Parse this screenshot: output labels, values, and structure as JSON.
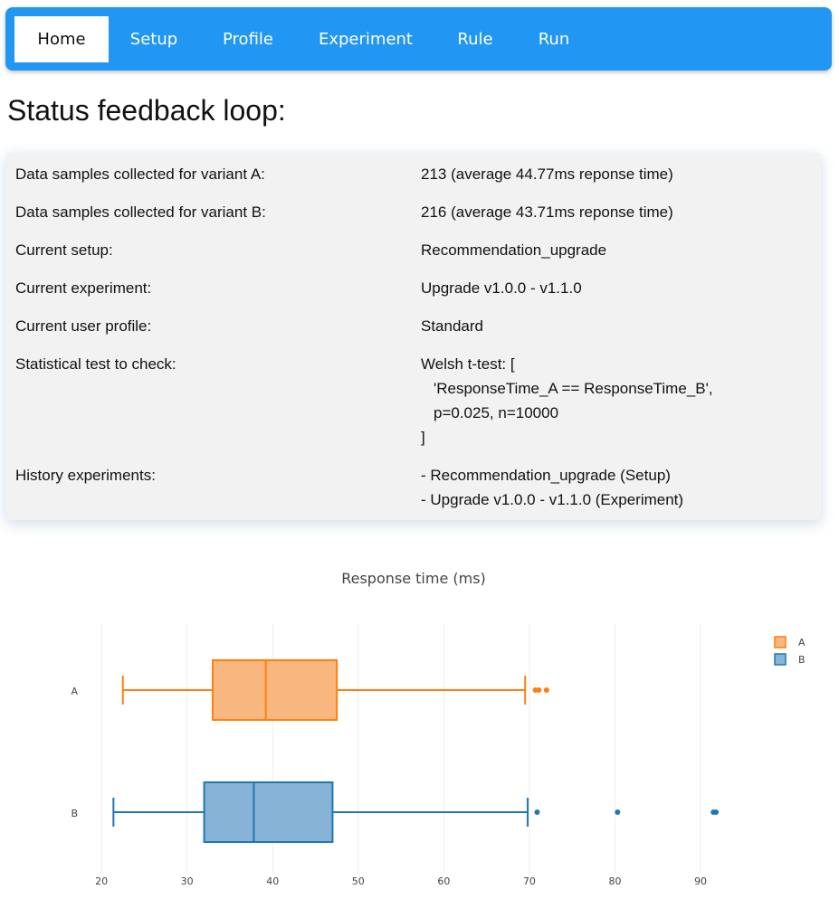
{
  "nav": {
    "items": [
      {
        "label": "Home",
        "active": true
      },
      {
        "label": "Setup"
      },
      {
        "label": "Profile"
      },
      {
        "label": "Experiment"
      },
      {
        "label": "Rule"
      },
      {
        "label": "Run"
      }
    ]
  },
  "page_title": "Status feedback loop:",
  "status": {
    "samples_a_label": "Data samples collected for variant A:",
    "samples_a_value": "213 (average 44.77ms reponse time)",
    "samples_b_label": "Data samples collected for variant B:",
    "samples_b_value": "216 (average 43.71ms reponse time)",
    "setup_label": "Current setup:",
    "setup_value": "Recommendation_upgrade",
    "experiment_label": "Current experiment:",
    "experiment_value": "Upgrade v1.0.0 - v1.1.0",
    "profile_label": "Current user profile:",
    "profile_value": "Standard",
    "test_label": "Statistical test to check:",
    "test_lines": [
      "Welsh t-test: [",
      "'ResponseTime_A == ResponseTime_B',",
      "p=0.025, n=10000",
      "]"
    ],
    "history_label": "History experiments:",
    "history_lines": [
      "- Recommendation_upgrade (Setup)",
      "- Upgrade v1.0.0 - v1.1.0 (Experiment)"
    ]
  },
  "chart_data": {
    "type": "box",
    "orientation": "horizontal",
    "title": "Response time (ms)",
    "xlim": [
      16.5,
      97.5
    ],
    "xticks": [
      20,
      30,
      40,
      50,
      60,
      70,
      80,
      90
    ],
    "grid": true,
    "legend_position": "top-right",
    "series": [
      {
        "name": "A",
        "color": "#ff7f0e",
        "fill": "#f8b77f",
        "min": 22.5,
        "q1": 33,
        "median": 39.2,
        "q3": 47.5,
        "max": 69.5,
        "outliers": [
          70.7,
          71.1,
          72.0
        ]
      },
      {
        "name": "B",
        "color": "#1f77b4",
        "fill": "#87b3d6",
        "min": 21.4,
        "q1": 32,
        "median": 37.8,
        "q3": 47,
        "max": 69.8,
        "outliers": [
          70.9,
          80.3,
          91.5,
          91.8
        ]
      }
    ]
  }
}
